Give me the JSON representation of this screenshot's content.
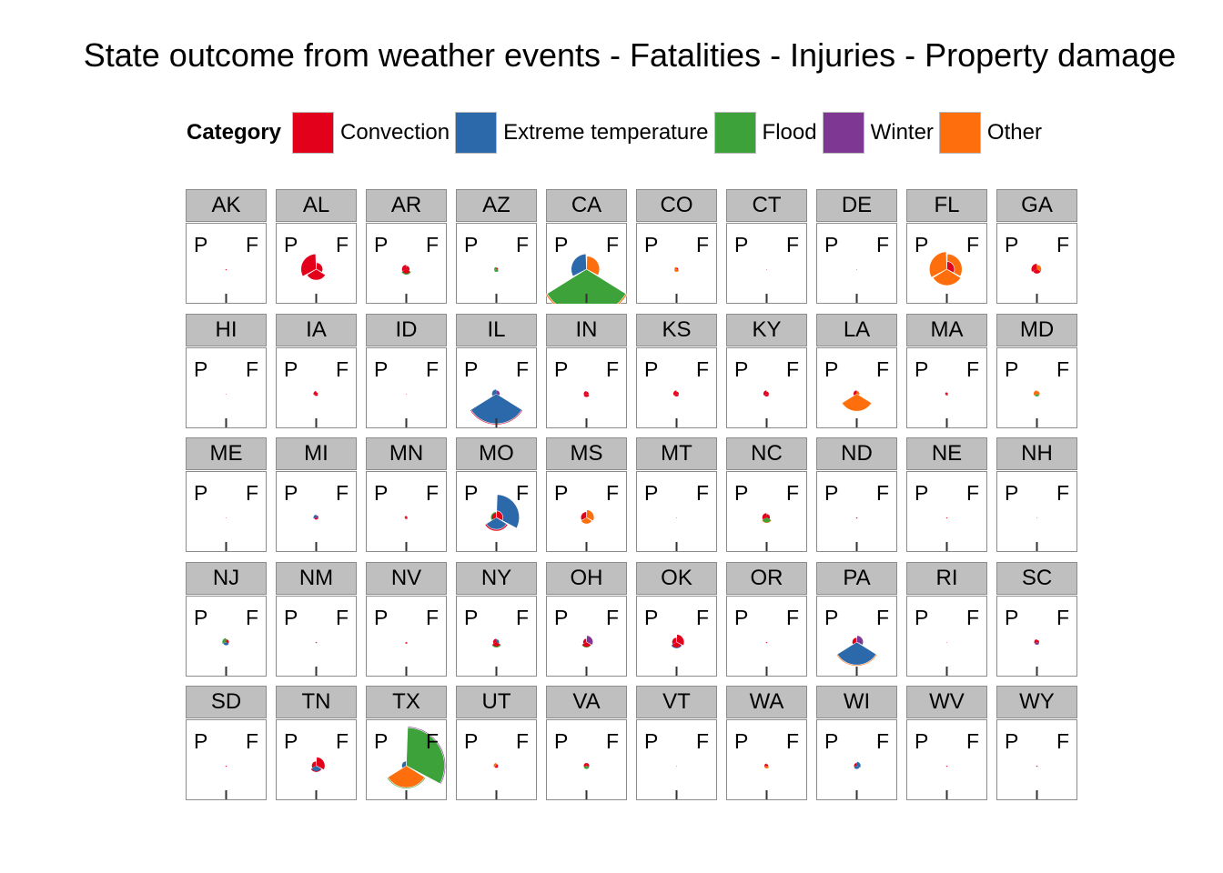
{
  "title": "State outcome from weather events - Fatalities - Injuries - Property damage",
  "legend": {
    "title": "Category",
    "items": [
      {
        "label": "Convection",
        "color": "#e3001b"
      },
      {
        "label": "Extreme temperature",
        "color": "#2b69aa"
      },
      {
        "label": "Flood",
        "color": "#3da23a"
      },
      {
        "label": "Winter",
        "color": "#7e3792"
      },
      {
        "label": "Other",
        "color": "#ff6e0d"
      }
    ]
  },
  "chart_data": {
    "type": "polar-bar",
    "facet_by": "state",
    "theta_labels": [
      "P",
      "F"
    ],
    "categories": [
      "Convection",
      "Extreme temperature",
      "Flood",
      "Winter",
      "Other"
    ],
    "colors": [
      "#e3001b",
      "#2b69aa",
      "#3da23a",
      "#7e3792",
      "#ff6e0d"
    ],
    "radial_scale_max": 1,
    "value_meaning": "relative outcome; each state has stacked wedges, each wedge lists [category index, radial value]",
    "states": [
      {
        "name": "AK",
        "wedges": [
          [
            [
              0,
              0.02
            ]
          ],
          [],
          []
        ]
      },
      {
        "name": "AL",
        "wedges": [
          [
            [
              0,
              0.2
            ]
          ],
          [
            [
              0,
              0.28
            ]
          ],
          [
            [
              0,
              0.12
            ]
          ]
        ]
      },
      {
        "name": "AR",
        "wedges": [
          [
            [
              0,
              0.08
            ],
            [
              2,
              0.1
            ]
          ],
          [
            [
              0,
              0.08
            ]
          ],
          [
            [
              0,
              0.06
            ]
          ]
        ]
      },
      {
        "name": "AZ",
        "wedges": [
          [
            [
              2,
              0.05
            ]
          ],
          [
            [
              2,
              0.04
            ]
          ],
          [
            [
              0,
              0.03
            ]
          ]
        ]
      },
      {
        "name": "CA",
        "wedges": [
          [
            [
              2,
              0.85
            ],
            [
              4,
              0.88
            ]
          ],
          [
            [
              1,
              0.28
            ]
          ],
          [
            [
              4,
              0.24
            ]
          ]
        ]
      },
      {
        "name": "CO",
        "wedges": [
          [
            [
              4,
              0.05
            ]
          ],
          [
            [
              4,
              0.04
            ]
          ],
          [
            [
              0,
              0.03
            ]
          ]
        ]
      },
      {
        "name": "CT",
        "wedges": [
          [
            [
              0,
              0.01
            ]
          ],
          [],
          []
        ]
      },
      {
        "name": "DE",
        "wedges": [
          [
            [
              0,
              0.01
            ]
          ],
          [],
          []
        ]
      },
      {
        "name": "FL",
        "wedges": [
          [
            [
              4,
              0.3
            ]
          ],
          [
            [
              4,
              0.32
            ]
          ],
          [
            [
              4,
              0.28
            ],
            [
              0,
              0.14
            ]
          ]
        ]
      },
      {
        "name": "GA",
        "wedges": [
          [
            [
              0,
              0.08
            ]
          ],
          [
            [
              0,
              0.1
            ]
          ],
          [
            [
              4,
              0.08
            ]
          ]
        ]
      },
      {
        "name": "HI",
        "wedges": [
          [
            [
              0,
              0.01
            ]
          ],
          [],
          []
        ]
      },
      {
        "name": "IA",
        "wedges": [
          [
            [
              0,
              0.04
            ]
          ],
          [
            [
              0,
              0.05
            ]
          ],
          [
            [
              0,
              0.03
            ]
          ]
        ]
      },
      {
        "name": "ID",
        "wedges": [
          [
            [
              0,
              0.01
            ]
          ],
          [],
          []
        ]
      },
      {
        "name": "IL",
        "wedges": [
          [
            [
              1,
              0.55
            ],
            [
              0,
              0.57
            ]
          ],
          [
            [
              1,
              0.08
            ]
          ],
          [
            [
              3,
              0.06
            ]
          ]
        ]
      },
      {
        "name": "IN",
        "wedges": [
          [
            [
              0,
              0.06
            ]
          ],
          [
            [
              0,
              0.05
            ]
          ],
          [
            [
              0,
              0.04
            ]
          ]
        ]
      },
      {
        "name": "KS",
        "wedges": [
          [
            [
              0,
              0.05
            ]
          ],
          [
            [
              0,
              0.06
            ]
          ],
          [
            [
              0,
              0.04
            ]
          ]
        ]
      },
      {
        "name": "KY",
        "wedges": [
          [
            [
              0,
              0.05
            ]
          ],
          [
            [
              0,
              0.06
            ]
          ],
          [
            [
              0,
              0.04
            ]
          ]
        ]
      },
      {
        "name": "LA",
        "wedges": [
          [
            [
              4,
              0.32
            ]
          ],
          [
            [
              0,
              0.06
            ]
          ],
          [
            [
              4,
              0.05
            ]
          ]
        ]
      },
      {
        "name": "MA",
        "wedges": [
          [
            [
              0,
              0.03
            ]
          ],
          [
            [
              0,
              0.03
            ]
          ],
          [
            [
              0,
              0.02
            ]
          ]
        ]
      },
      {
        "name": "MD",
        "wedges": [
          [
            [
              2,
              0.05
            ]
          ],
          [
            [
              4,
              0.06
            ]
          ],
          [
            [
              4,
              0.05
            ]
          ]
        ]
      },
      {
        "name": "ME",
        "wedges": [
          [
            [
              0,
              0.01
            ]
          ],
          [],
          []
        ]
      },
      {
        "name": "MI",
        "wedges": [
          [
            [
              0,
              0.04
            ]
          ],
          [
            [
              1,
              0.05
            ]
          ],
          [
            [
              3,
              0.04
            ]
          ]
        ]
      },
      {
        "name": "MN",
        "wedges": [
          [
            [
              0,
              0.03
            ]
          ],
          [
            [
              0,
              0.03
            ]
          ],
          [
            [
              0,
              0.02
            ]
          ]
        ]
      },
      {
        "name": "MO",
        "wedges": [
          [
            [
              1,
              0.22
            ],
            [
              0,
              0.25
            ]
          ],
          [
            [
              2,
              0.1
            ],
            [
              0,
              0.08
            ]
          ],
          [
            [
              1,
              0.42
            ],
            [
              0,
              0.12
            ]
          ]
        ]
      },
      {
        "name": "MS",
        "wedges": [
          [
            [
              4,
              0.12
            ]
          ],
          [
            [
              0,
              0.1
            ]
          ],
          [
            [
              4,
              0.14
            ]
          ]
        ]
      },
      {
        "name": "MT",
        "wedges": [
          [
            [
              0,
              0.01
            ]
          ],
          [],
          []
        ]
      },
      {
        "name": "NC",
        "wedges": [
          [
            [
              2,
              0.09
            ],
            [
              4,
              0.1
            ]
          ],
          [
            [
              0,
              0.08
            ]
          ],
          [
            [
              0,
              0.06
            ]
          ]
        ]
      },
      {
        "name": "ND",
        "wedges": [
          [
            [
              0,
              0.02
            ]
          ],
          [],
          []
        ]
      },
      {
        "name": "NE",
        "wedges": [
          [
            [
              0,
              0.02
            ]
          ],
          [],
          []
        ]
      },
      {
        "name": "NH",
        "wedges": [
          [
            [
              0,
              0.01
            ]
          ],
          [],
          []
        ]
      },
      {
        "name": "NJ",
        "wedges": [
          [
            [
              1,
              0.06
            ]
          ],
          [
            [
              2,
              0.07
            ]
          ],
          [
            [
              0,
              0.05
            ]
          ]
        ]
      },
      {
        "name": "NM",
        "wedges": [
          [
            [
              0,
              0.02
            ]
          ],
          [],
          []
        ]
      },
      {
        "name": "NV",
        "wedges": [
          [
            [
              0,
              0.03
            ]
          ],
          [],
          []
        ]
      },
      {
        "name": "NY",
        "wedges": [
          [
            [
              0,
              0.08
            ],
            [
              2,
              0.1
            ]
          ],
          [
            [
              0,
              0.06
            ]
          ],
          [
            [
              1,
              0.05
            ]
          ]
        ]
      },
      {
        "name": "OH",
        "wedges": [
          [
            [
              2,
              0.1
            ],
            [
              0,
              0.09
            ]
          ],
          [
            [
              0,
              0.06
            ]
          ],
          [
            [
              3,
              0.12
            ]
          ]
        ]
      },
      {
        "name": "OK",
        "wedges": [
          [
            [
              0,
              0.1
            ],
            [
              1,
              0.12
            ]
          ],
          [
            [
              0,
              0.08
            ]
          ],
          [
            [
              0,
              0.14
            ]
          ]
        ]
      },
      {
        "name": "OR",
        "wedges": [
          [
            [
              0,
              0.02
            ]
          ],
          [],
          []
        ]
      },
      {
        "name": "PA",
        "wedges": [
          [
            [
              1,
              0.42
            ],
            [
              4,
              0.44
            ]
          ],
          [
            [
              0,
              0.08
            ]
          ],
          [
            [
              3,
              0.12
            ]
          ]
        ]
      },
      {
        "name": "RI",
        "wedges": [
          [
            [
              0,
              0.01
            ]
          ],
          [],
          []
        ]
      },
      {
        "name": "SC",
        "wedges": [
          [
            [
              3,
              0.05
            ]
          ],
          [
            [
              0,
              0.05
            ]
          ],
          [
            [
              0,
              0.04
            ]
          ]
        ]
      },
      {
        "name": "SD",
        "wedges": [
          [
            [
              0,
              0.02
            ]
          ],
          [],
          []
        ]
      },
      {
        "name": "TN",
        "wedges": [
          [
            [
              1,
              0.1
            ],
            [
              0,
              0.12
            ]
          ],
          [
            [
              0,
              0.08
            ]
          ],
          [
            [
              0,
              0.16
            ]
          ]
        ]
      },
      {
        "name": "TX",
        "wedges": [
          [
            [
              4,
              0.4
            ],
            [
              2,
              0.42
            ]
          ],
          [
            [
              1,
              0.08
            ]
          ],
          [
            [
              2,
              0.7
            ],
            [
              3,
              0.72
            ]
          ]
        ]
      },
      {
        "name": "UT",
        "wedges": [
          [
            [
              0,
              0.04
            ]
          ],
          [
            [
              4,
              0.05
            ]
          ],
          [
            [
              0,
              0.03
            ]
          ]
        ]
      },
      {
        "name": "VA",
        "wedges": [
          [
            [
              2,
              0.06
            ]
          ],
          [
            [
              0,
              0.05
            ]
          ],
          [
            [
              0,
              0.05
            ]
          ]
        ]
      },
      {
        "name": "VT",
        "wedges": [
          [
            [
              0,
              0.01
            ]
          ],
          [],
          []
        ]
      },
      {
        "name": "WA",
        "wedges": [
          [
            [
              4,
              0.05
            ]
          ],
          [
            [
              0,
              0.04
            ]
          ],
          [
            [
              0,
              0.03
            ]
          ]
        ]
      },
      {
        "name": "WI",
        "wedges": [
          [
            [
              1,
              0.06
            ]
          ],
          [
            [
              0,
              0.05
            ]
          ],
          [
            [
              1,
              0.07
            ]
          ]
        ]
      },
      {
        "name": "WV",
        "wedges": [
          [
            [
              0,
              0.02
            ]
          ],
          [],
          []
        ]
      },
      {
        "name": "WY",
        "wedges": [
          [
            [
              0,
              0.02
            ]
          ],
          [],
          []
        ]
      }
    ]
  }
}
